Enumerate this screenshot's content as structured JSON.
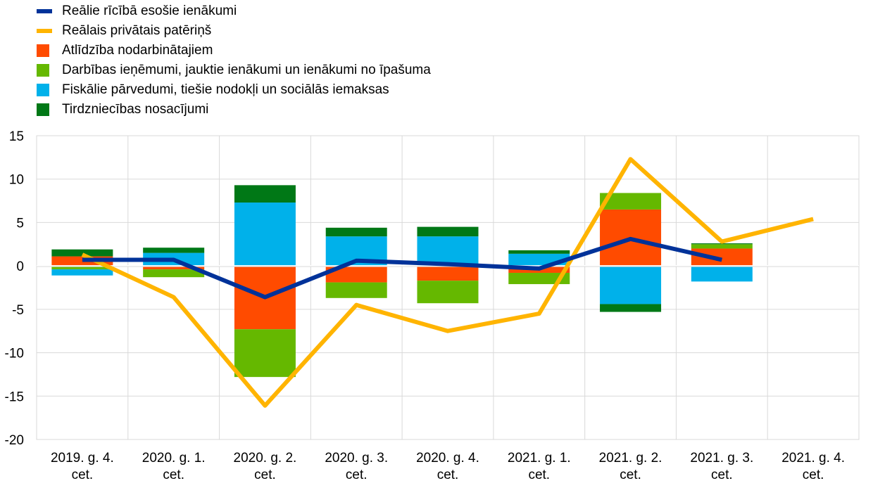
{
  "legend": [
    {
      "label": "Reālie rīcībā esošie ienākumi",
      "kind": "line",
      "color": "#003299"
    },
    {
      "label": "Reālais privātais patēriņš",
      "kind": "line",
      "color": "#ffb400"
    },
    {
      "label": "Atlīdzība nodarbinātajiem",
      "kind": "box",
      "color": "#ff4b00"
    },
    {
      "label": "Darbības ieņēmumi, jauktie ienākumi un ienākumi no īpašuma",
      "kind": "box",
      "color": "#65b800"
    },
    {
      "label": "Fiskālie pārvedumi, tiešie nodokļi un sociālās iemaksas",
      "kind": "box",
      "color": "#00b1ea"
    },
    {
      "label": "Tirdzniecības nosacījumi",
      "kind": "box",
      "color": "#007816"
    }
  ],
  "chart_data": {
    "type": "bar",
    "stacked": true,
    "categories": [
      [
        "2019. g. 4.",
        "cet."
      ],
      [
        "2020. g. 1.",
        "cet."
      ],
      [
        "2020. g. 2.",
        "cet."
      ],
      [
        "2020. g. 3.",
        "cet."
      ],
      [
        "2020. g. 4.",
        "cet."
      ],
      [
        "2021. g. 1.",
        "cet."
      ],
      [
        "2021. g. 2.",
        "cet."
      ],
      [
        "2021. g. 3.",
        "cet."
      ],
      [
        "2021. g. 4.",
        "cet."
      ]
    ],
    "ylim": [
      -20,
      15
    ],
    "yticks": [
      15,
      10,
      5,
      0,
      -5,
      -10,
      -15,
      -20
    ],
    "grid": true,
    "legend_position": "top-left",
    "series": [
      {
        "name": "Atlīdzība nodarbinātajiem",
        "type": "bar",
        "color": "#ff4b00",
        "values": [
          1.1,
          -0.4,
          -7.3,
          -1.9,
          -1.7,
          -0.8,
          6.5,
          2.0,
          null
        ]
      },
      {
        "name": "Darbības ieņēmumi, jauktie ienākumi un ienākumi no īpašuma",
        "type": "bar",
        "color": "#65b800",
        "values": [
          -0.4,
          -0.9,
          -5.5,
          -1.8,
          -2.6,
          -1.3,
          1.9,
          0.5,
          null
        ]
      },
      {
        "name": "Fiskālie pārvedumi, tiešie nodokļi un sociālās iemaksas",
        "type": "bar",
        "color": "#00b1ea",
        "values": [
          -0.7,
          1.5,
          7.3,
          3.4,
          3.4,
          1.4,
          -4.4,
          -1.8,
          null
        ]
      },
      {
        "name": "Tirdzniecības nosacījumi",
        "type": "bar",
        "color": "#007816",
        "values": [
          0.8,
          0.6,
          2.0,
          1.0,
          1.1,
          0.4,
          -0.9,
          0.1,
          null
        ]
      },
      {
        "name": "Reālie rīcībā esošie ienākumi",
        "type": "line",
        "color": "#003299",
        "values": [
          0.7,
          0.7,
          -3.6,
          0.6,
          0.2,
          -0.3,
          3.1,
          0.7,
          null
        ]
      },
      {
        "name": "Reālais privātais patēriņš",
        "type": "line",
        "color": "#ffb400",
        "values": [
          1.3,
          -3.6,
          -16.1,
          -4.5,
          -7.5,
          -5.5,
          12.3,
          2.8,
          5.4
        ]
      }
    ]
  }
}
